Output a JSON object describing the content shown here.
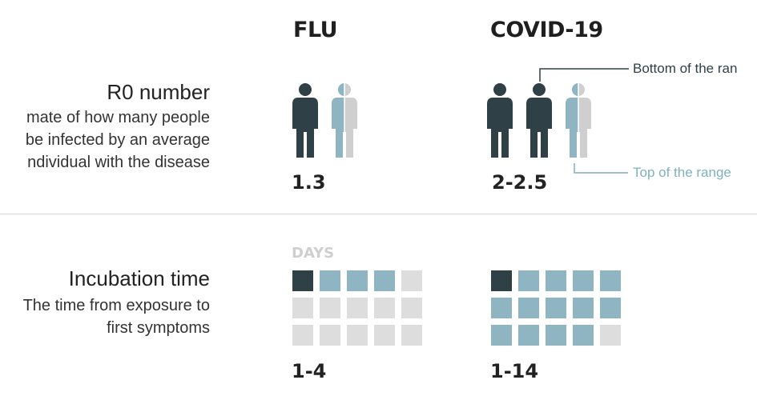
{
  "columns": {
    "flu": "FLU",
    "covid": "COVID-19"
  },
  "r0": {
    "title": "R0 number",
    "desc_lines": [
      "mate of how many people",
      "be infected by an average",
      "ndividual with the disease"
    ],
    "flu_value": "1.3",
    "covid_value": "2-2.5",
    "bottom_label": "Bottom of the ran",
    "top_label": "Top of the range"
  },
  "incubation": {
    "title": "Incubation time",
    "desc_lines": [
      "The time from exposure to",
      "first symptoms"
    ],
    "days_label": "DAYS",
    "flu_value": "1-4",
    "covid_value": "1-14",
    "flu_days": {
      "min": 1,
      "max": 4,
      "total": 15
    },
    "covid_days": {
      "min": 1,
      "max": 14,
      "total": 15
    }
  },
  "colors": {
    "dark": "#2f4147",
    "blue": "#8fb4c2",
    "light": "#dddddd",
    "blue_text": "#7fb0c2",
    "dark_text": "#2f4147"
  },
  "icons": {
    "person": "person-silhouette-icon"
  }
}
